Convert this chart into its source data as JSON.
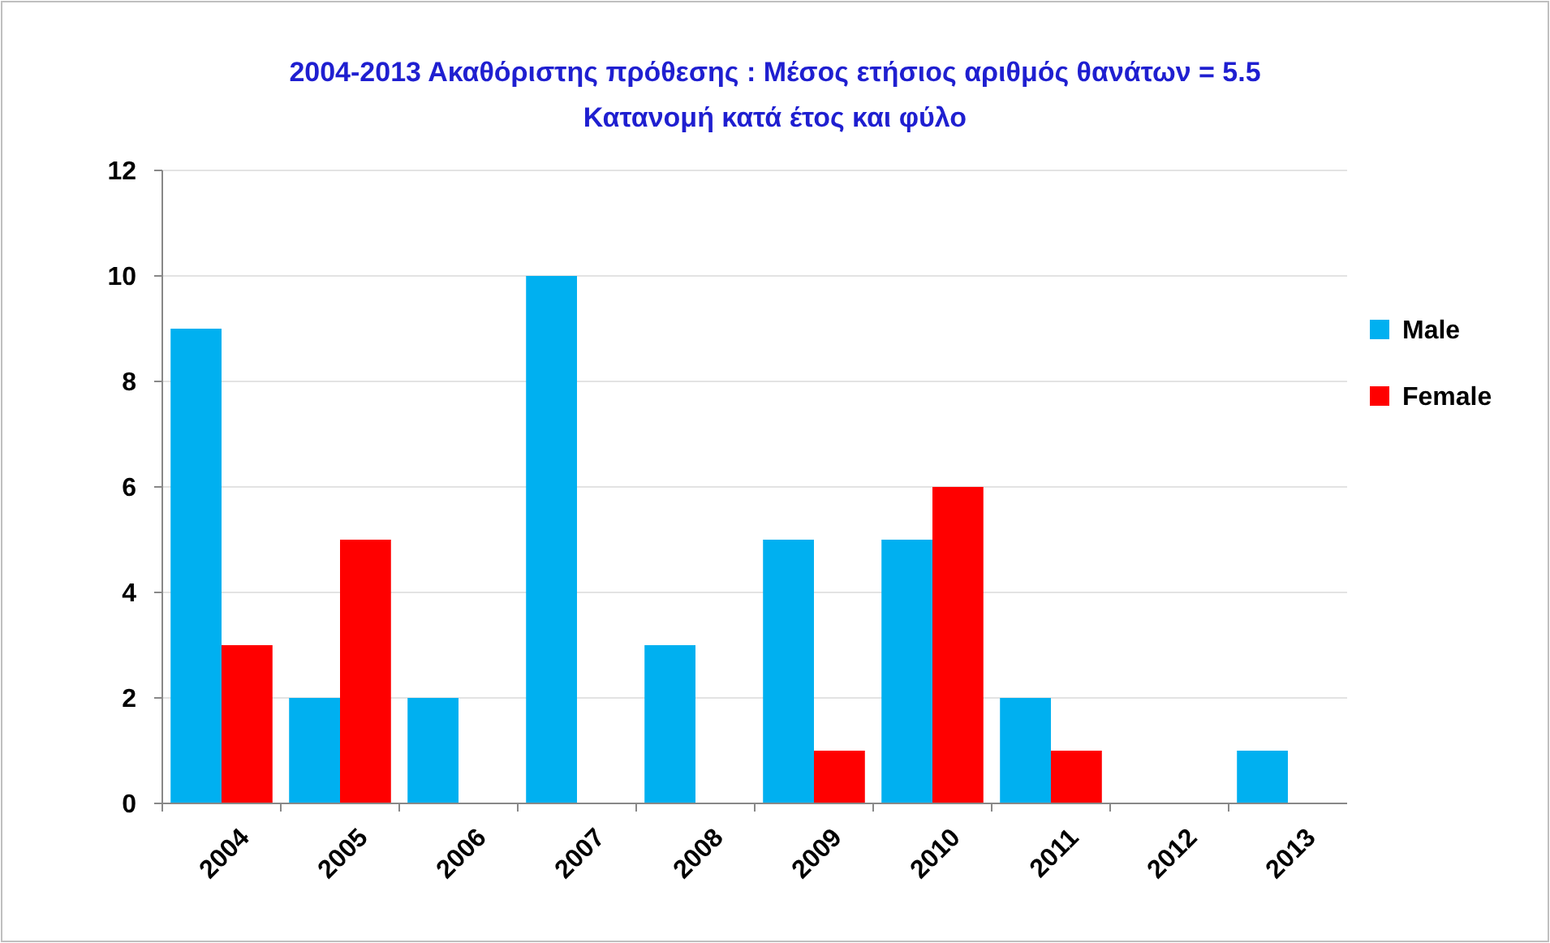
{
  "chart_data": {
    "type": "bar",
    "title": "2004-2013   Ακαθόριστης πρόθεσης :  Μέσος ετήσιος αριθμός θανάτων = 5.5",
    "subtitle": "Κατανομή κατά έτος και φύλο",
    "categories": [
      "2004",
      "2005",
      "2006",
      "2007",
      "2008",
      "2009",
      "2010",
      "2011",
      "2012",
      "2013"
    ],
    "series": [
      {
        "name": "Male",
        "color": "#00b0f0",
        "values": [
          9,
          2,
          2,
          10,
          3,
          5,
          5,
          2,
          0,
          1
        ]
      },
      {
        "name": "Female",
        "color": "#ff0000",
        "values": [
          3,
          5,
          0,
          0,
          0,
          1,
          6,
          1,
          0,
          0
        ]
      }
    ],
    "ylim": [
      0,
      12
    ],
    "yticks": [
      0,
      2,
      4,
      6,
      8,
      10,
      12
    ],
    "grid": "y",
    "legend": "right"
  }
}
